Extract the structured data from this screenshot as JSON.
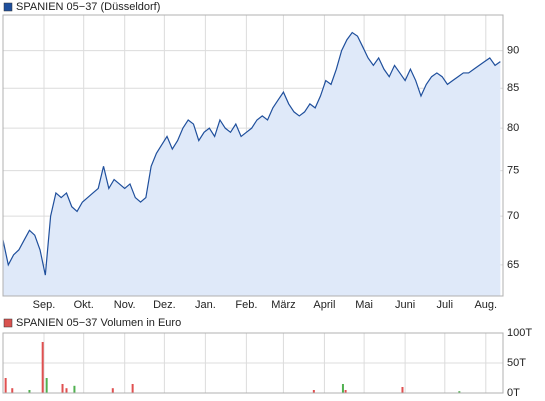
{
  "chart_data": [
    {
      "type": "area",
      "series": [
        {
          "name": "SPANIEN 05−37 (Düsseldorf)",
          "color": "#1f4f9c",
          "fill": "#dfe9f9",
          "values": [
            67.5,
            65,
            66,
            66.5,
            67.5,
            68.5,
            68,
            66.5,
            64,
            70,
            72.5,
            72,
            72.5,
            71,
            70.5,
            71.5,
            72,
            72.5,
            73,
            75.5,
            73,
            74,
            73.5,
            73,
            73.5,
            72,
            71.5,
            72,
            75.5,
            77,
            78,
            79,
            77.5,
            78.5,
            80,
            81,
            80.5,
            78.5,
            79.5,
            80,
            79,
            81,
            80,
            79.5,
            80.5,
            79,
            79.5,
            80,
            81,
            81.5,
            81,
            82.5,
            83.5,
            84.5,
            83,
            82,
            81.5,
            82,
            83,
            82.5,
            84,
            86,
            85.5,
            87.5,
            90,
            91.5,
            92.5,
            92,
            90.5,
            89,
            88,
            89,
            87.5,
            86.5,
            88,
            87,
            86,
            87.5,
            86,
            84,
            85.5,
            86.5,
            87,
            86.5,
            85.5,
            86,
            86.5,
            87,
            87,
            87.5,
            88,
            88.5,
            89,
            88,
            88.5
          ]
        }
      ],
      "x": [
        0,
        4,
        8,
        12,
        16,
        20,
        24,
        28,
        32,
        36,
        40,
        44,
        48,
        52,
        56,
        60,
        64,
        68,
        72,
        76,
        80,
        84,
        88,
        92,
        96,
        100,
        104,
        108,
        112,
        116,
        120,
        124,
        128,
        132,
        136,
        140,
        144,
        148,
        152,
        156,
        160,
        164,
        168,
        172,
        176,
        180,
        184,
        188,
        192,
        196,
        200,
        204,
        208,
        212,
        216,
        220,
        224,
        228,
        232,
        236,
        240,
        244,
        248,
        252,
        256,
        260,
        264,
        268,
        272,
        276,
        280,
        284,
        288,
        292,
        296,
        300,
        304,
        308,
        312,
        316,
        320,
        324,
        328,
        332,
        336,
        340,
        344,
        348,
        352,
        356,
        360,
        364,
        368,
        372,
        376
      ],
      "xlim": [
        0,
        378
      ],
      "xticks": [
        {
          "value": 31,
          "label": "Sep."
        },
        {
          "value": 61,
          "label": "Okt."
        },
        {
          "value": 92,
          "label": "Nov."
        },
        {
          "value": 122,
          "label": "Dez."
        },
        {
          "value": 153,
          "label": "Jan."
        },
        {
          "value": 184,
          "label": "Feb."
        },
        {
          "value": 212,
          "label": "März"
        },
        {
          "value": 243,
          "label": "April"
        },
        {
          "value": 273,
          "label": "Mai"
        },
        {
          "value": 304,
          "label": "Juni"
        },
        {
          "value": 334,
          "label": "Juli"
        },
        {
          "value": 365,
          "label": "Aug."
        }
      ],
      "ylim": [
        62,
        95
      ],
      "yticks": [
        65,
        70,
        75,
        80,
        85,
        90
      ],
      "log_scale": true,
      "grid": true
    },
    {
      "type": "bar",
      "series": [
        {
          "name": "SPANIEN 05−37 Volumen in Euro",
          "color": "#d9534f",
          "values": [
            25,
            8,
            5,
            85,
            25,
            15,
            8,
            12,
            8,
            15,
            5,
            15,
            5,
            10,
            3
          ]
        }
      ],
      "bar_colors": [
        "#e05050",
        "#e05050",
        "#50b050",
        "#e05050",
        "#50b050",
        "#e05050",
        "#e05050",
        "#50b050",
        "#e05050",
        "#e05050",
        "#e05050",
        "#50b050",
        "#e05050",
        "#e05050",
        "#50b050"
      ],
      "x": [
        2,
        7,
        20,
        30,
        33,
        45,
        48,
        54,
        83,
        98,
        235,
        257,
        259,
        302,
        345
      ],
      "xlim": [
        0,
        378
      ],
      "ylim": [
        0,
        100
      ],
      "yticks": [
        {
          "value": 0,
          "label": "0T"
        },
        {
          "value": 50,
          "label": "50T"
        },
        {
          "value": 100,
          "label": "100T"
        }
      ],
      "grid": true
    }
  ]
}
